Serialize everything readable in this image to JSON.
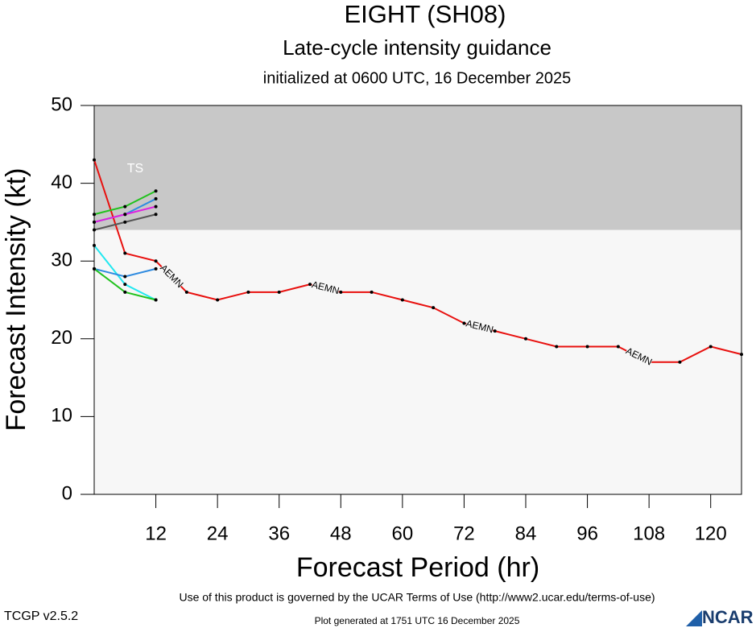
{
  "chart_data": {
    "type": "line",
    "title": "EIGHT (SH08)",
    "subtitle": "Late-cycle intensity guidance",
    "initialized": "initialized at 0600 UTC, 16 December 2025",
    "x_label": "Forecast Period (hr)",
    "y_label": "Forecast Intensity (kt)",
    "xlim": [
      0,
      126
    ],
    "xticks": [
      12,
      24,
      36,
      48,
      60,
      72,
      84,
      96,
      108,
      120
    ],
    "ylim": [
      0,
      50
    ],
    "yticks": [
      0,
      10,
      20,
      30,
      40,
      50
    ],
    "band": {
      "range": [
        34,
        50
      ],
      "label": "TS",
      "color": "#c8c8c8"
    },
    "background": "#f7f7f7",
    "series": [
      {
        "name": "AEMN",
        "color": "#e8100e",
        "x": [
          0,
          6,
          12,
          18,
          24,
          30,
          36,
          42,
          48,
          54,
          60,
          66,
          72,
          78,
          84,
          90,
          96,
          102,
          108,
          114,
          120,
          126
        ],
        "values": [
          43,
          31,
          30,
          26,
          25,
          26,
          26,
          27,
          26,
          26,
          25,
          24,
          22,
          21,
          20,
          19,
          19,
          19,
          17,
          17,
          19,
          18
        ]
      },
      {
        "color": "#22c21e",
        "x": [
          0,
          6,
          12
        ],
        "values": [
          36,
          37,
          39
        ]
      },
      {
        "color": "#2f8be0",
        "x": [
          0,
          6,
          12
        ],
        "values": [
          35,
          36,
          38
        ]
      },
      {
        "color": "#e020e0",
        "x": [
          0,
          6,
          12
        ],
        "values": [
          35,
          36,
          37
        ]
      },
      {
        "color": "#555555",
        "x": [
          0,
          6,
          12
        ],
        "values": [
          34,
          35,
          36
        ]
      },
      {
        "color": "#22e8f0",
        "x": [
          0,
          6,
          12
        ],
        "values": [
          32,
          27,
          25
        ]
      },
      {
        "color": "#2f8be0",
        "x": [
          0,
          6,
          12
        ],
        "values": [
          29,
          28,
          29
        ]
      },
      {
        "color": "#22c21e",
        "x": [
          0,
          6,
          12
        ],
        "values": [
          29,
          26,
          25
        ]
      }
    ],
    "footer": "Use of this product is governed by the UCAR Terms of Use (http://www2.ucar.edu/terms-of-use)",
    "version": "TCGP v2.5.2",
    "generated": "Plot generated at 1751 UTC   16 December 2025",
    "logo": "NCAR"
  }
}
